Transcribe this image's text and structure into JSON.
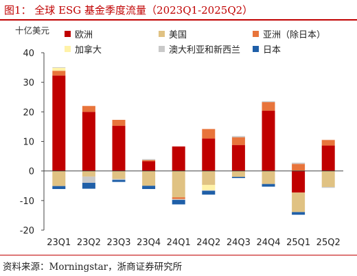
{
  "figure": {
    "title": "图1：  全球 ESG 基金季度流量（2023Q1-2025Q2）",
    "source": "资料来源：Morningstar，浙商证券研究所"
  },
  "chart_data": {
    "type": "bar",
    "stacked": true,
    "unit_label": "十亿美元",
    "categories": [
      "23Q1",
      "23Q2",
      "23Q3",
      "23Q4",
      "24Q1",
      "24Q2",
      "24Q3",
      "24Q4",
      "25Q1",
      "25Q2"
    ],
    "ylim": [
      -20,
      40
    ],
    "yticks": [
      -20,
      -10,
      0,
      10,
      20,
      30,
      40
    ],
    "grid": false,
    "legend_position": "top",
    "series": [
      {
        "name": "欧洲",
        "color": "#c00000",
        "values": [
          32.3,
          20.0,
          15.3,
          3.3,
          8.3,
          11.0,
          8.8,
          20.4,
          -7.3,
          8.6
        ]
      },
      {
        "name": "美国",
        "color": "#e0c283",
        "values": [
          -5.1,
          -1.9,
          -2.7,
          -5.0,
          -8.9,
          -4.7,
          -2.0,
          -4.4,
          -6.6,
          -5.4
        ]
      },
      {
        "name": "亚洲（除日本）",
        "color": "#e8743b",
        "values": [
          1.6,
          2.0,
          2.0,
          0.4,
          -0.6,
          3.2,
          2.6,
          2.9,
          2.4,
          1.9
        ]
      },
      {
        "name": "加拿大",
        "color": "#fff2a8",
        "values": [
          1.0,
          0.0,
          0.0,
          0.0,
          0.0,
          -1.8,
          0.0,
          0.0,
          0.0,
          0.0
        ]
      },
      {
        "name": "澳大利亚和新西兰",
        "color": "#c9c9c9",
        "values": [
          0.2,
          -2.1,
          -0.3,
          0.3,
          -0.3,
          -0.2,
          0.4,
          0.3,
          0.4,
          -0.3
        ]
      },
      {
        "name": "日本",
        "color": "#1f5fa8",
        "values": [
          -1.0,
          -2.0,
          -0.7,
          -1.1,
          -1.5,
          -1.3,
          -0.4,
          -0.9,
          -0.9,
          0.0
        ]
      }
    ]
  }
}
